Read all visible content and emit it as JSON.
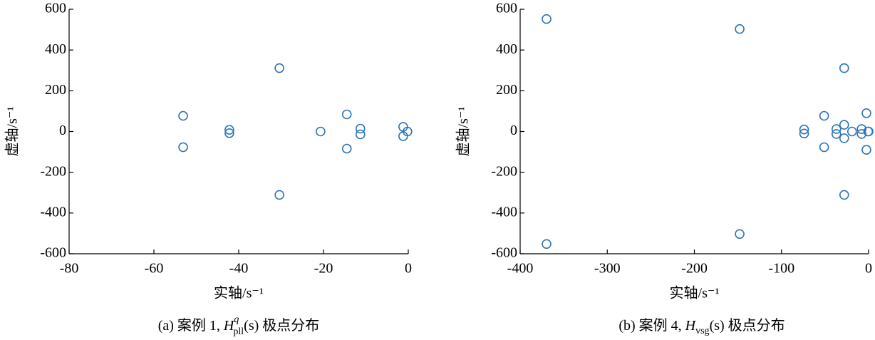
{
  "chart_data": [
    {
      "type": "scatter",
      "xlabel": "实轴/s⁻¹",
      "ylabel": "虚轴/s⁻¹",
      "caption": {
        "prefix": "(a)  案例 1, ",
        "symbol": "H",
        "sup": "q",
        "sub": "pll",
        "suffix": "(s) 极点分布"
      },
      "color": "#2e75b6",
      "xlim": [
        -80,
        0
      ],
      "ylim": [
        -600,
        600
      ],
      "xticks": [
        -80,
        -60,
        -40,
        -20,
        0
      ],
      "yticks": [
        -600,
        -400,
        -200,
        0,
        200,
        400,
        600
      ],
      "x": [
        -53.1,
        -53.1,
        -42.2,
        -42.2,
        -30.4,
        -30.4,
        -20.7,
        -14.5,
        -14.5,
        -11.3,
        -11.3,
        -1.2,
        -1.2,
        -0.2
      ],
      "values": [
        77,
        -77,
        8,
        -8,
        311,
        -311,
        0,
        84,
        -84,
        14,
        -14,
        23,
        -23,
        0
      ]
    },
    {
      "type": "scatter",
      "xlabel": "实轴/s⁻¹",
      "ylabel": "虚轴/s⁻¹",
      "caption": {
        "prefix": "(b)  案例 4, ",
        "symbol": "H",
        "sub": "vsg",
        "suffix": "(s) 极点分布"
      },
      "color": "#2e75b6",
      "xlim": [
        -400,
        0
      ],
      "ylim": [
        -600,
        600
      ],
      "xticks": [
        -400,
        -300,
        -200,
        -100,
        0
      ],
      "yticks": [
        -600,
        -400,
        -200,
        0,
        200,
        400,
        600
      ],
      "x": [
        -369.7,
        -369.7,
        -148,
        -148,
        -74,
        -74,
        -51,
        -51,
        -37,
        -37,
        -28,
        -28,
        -28,
        -28,
        -19,
        -8,
        -8,
        -2.5,
        -2.5,
        -0.5,
        0
      ],
      "values": [
        552,
        -552,
        503,
        -503,
        10,
        -10,
        77,
        -77,
        12,
        -12,
        311,
        -311,
        33,
        -33,
        0,
        12,
        -12,
        90,
        -90,
        0,
        0
      ]
    }
  ]
}
